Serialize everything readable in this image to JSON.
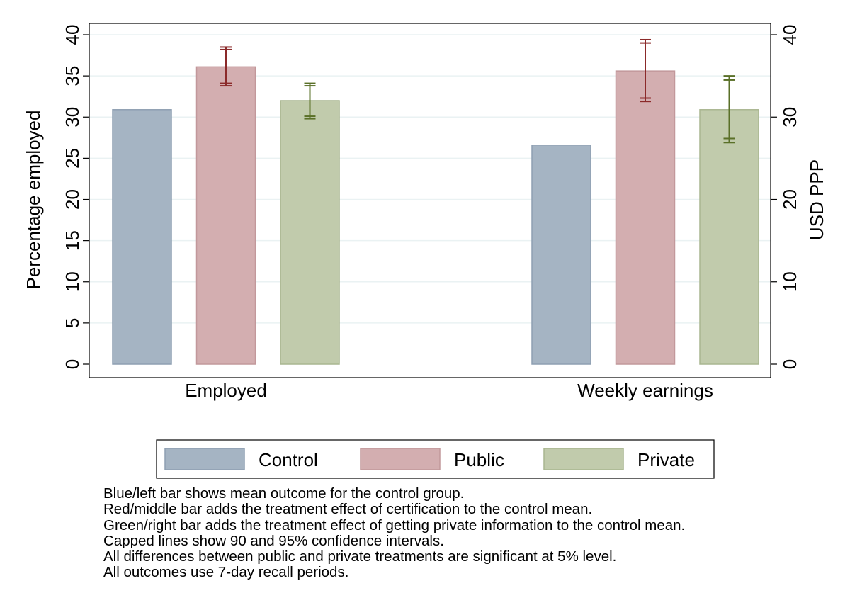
{
  "chart_data": {
    "type": "bar",
    "categories": [
      "Employed",
      "Weekly earnings"
    ],
    "y_left": {
      "label": "Percentage employed",
      "ticks": [
        0,
        5,
        10,
        15,
        20,
        25,
        30,
        35,
        40
      ],
      "range": [
        0,
        40
      ]
    },
    "y_right": {
      "label": "USD PPP",
      "ticks": [
        0,
        10,
        20,
        30,
        40
      ],
      "range": [
        0,
        40
      ]
    },
    "series": [
      {
        "name": "Control",
        "color": "#a5b4c3",
        "edge": "#8e9fb2",
        "values": [
          30.9,
          26.6
        ],
        "ci90": [
          null,
          null
        ],
        "ci95": [
          null,
          null
        ]
      },
      {
        "name": "Public",
        "color": "#d3aeb0",
        "edge": "#c2989b",
        "err_color": "#8b2a2a",
        "values": [
          36.1,
          35.6
        ],
        "ci90": [
          [
            34.1,
            38.2
          ],
          [
            32.3,
            39.0
          ]
        ],
        "ci95": [
          [
            33.8,
            38.5
          ],
          [
            31.9,
            39.4
          ]
        ]
      },
      {
        "name": "Private",
        "color": "#c1cbac",
        "edge": "#a9b690",
        "err_color": "#5a7028",
        "values": [
          32.0,
          30.9
        ],
        "ci90": [
          [
            30.1,
            33.8
          ],
          [
            27.4,
            34.5
          ]
        ],
        "ci95": [
          [
            29.8,
            34.1
          ],
          [
            26.9,
            35.0
          ]
        ]
      }
    ],
    "legend": {
      "position": "bottom",
      "border": true
    },
    "grid": {
      "horizontal": true,
      "color": "#eaf2f3"
    },
    "notes": [
      "Blue/left bar shows mean outcome for the control group.",
      "Red/middle bar adds the treatment effect of certification to the control mean.",
      "Green/right bar adds the treatment effect of getting private information to the control mean.",
      "Capped lines show 90 and 95% confidence intervals.",
      "All differences between public and private treatments are significant at 5% level.",
      "All outcomes use 7-day recall periods."
    ]
  }
}
